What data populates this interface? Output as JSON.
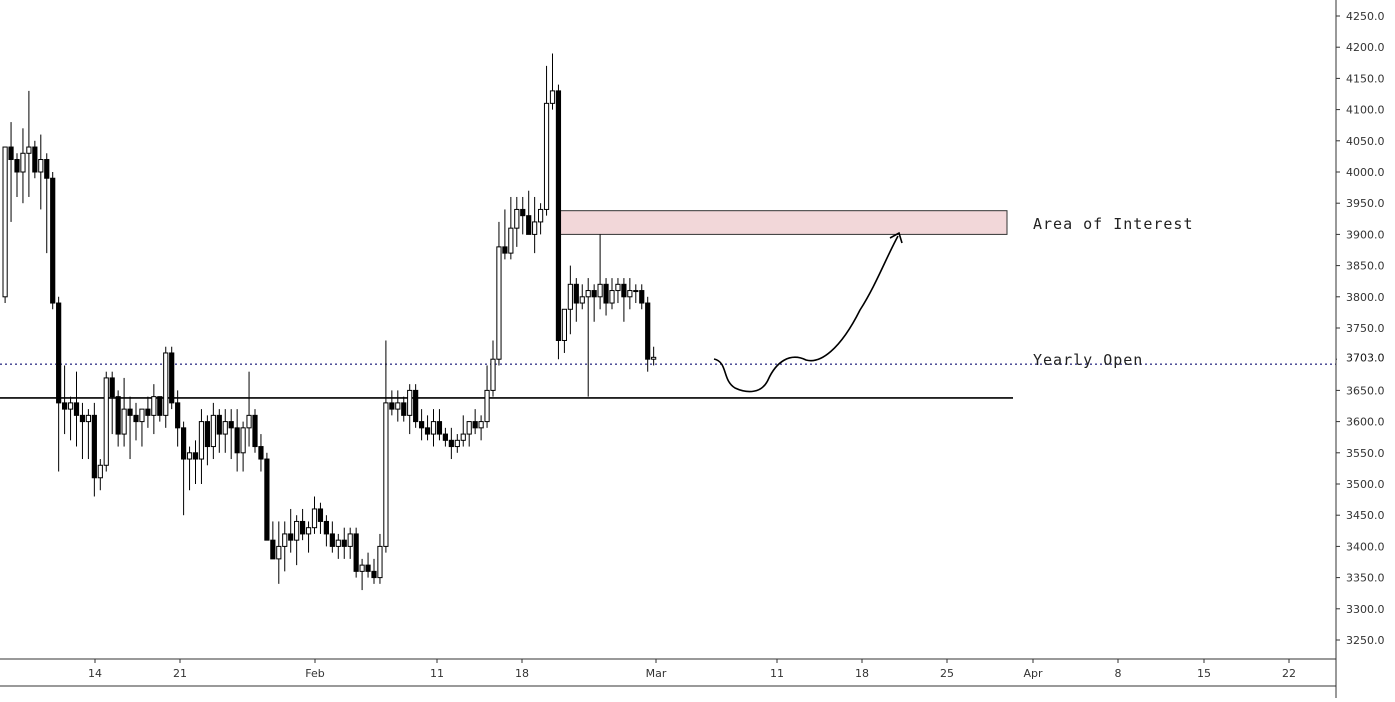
{
  "chart_data": {
    "type": "candlestick",
    "y_ticks": [
      "3250.0",
      "3300.0",
      "3350.0",
      "3400.0",
      "3450.0",
      "3500.0",
      "3550.0",
      "3600.0",
      "3650.0",
      "3700.0",
      "3750.0",
      "3800.0",
      "3850.0",
      "3900.0",
      "3950.0",
      "4000.0",
      "4050.0",
      "4100.0",
      "4150.0",
      "4200.0",
      "4250.0"
    ],
    "x_ticks": [
      "14",
      "21",
      "Feb",
      "11",
      "18",
      "Mar",
      "11",
      "18",
      "25",
      "Apr",
      "8",
      "15",
      "22"
    ],
    "price_axis_current_label": "3703.0",
    "ylim": [
      3230,
      4265
    ],
    "grid": false,
    "levels": {
      "support_line": 3638,
      "yearly_open": 3692
    },
    "area_of_interest": {
      "low": 3900,
      "high": 3938
    },
    "annotations": {
      "area_of_interest_label": "Area of Interest",
      "yearly_open_label": "Yearly Open"
    },
    "candles": [
      [
        3800,
        4040,
        3790,
        4040
      ],
      [
        4040,
        4080,
        3920,
        4020
      ],
      [
        4020,
        4030,
        3960,
        4000
      ],
      [
        4000,
        4070,
        3950,
        4030
      ],
      [
        4030,
        4130,
        3960,
        4040
      ],
      [
        4040,
        4050,
        3990,
        4000
      ],
      [
        4000,
        4060,
        3940,
        4020
      ],
      [
        4020,
        4030,
        3870,
        3990
      ],
      [
        3990,
        4000,
        3780,
        3790
      ],
      [
        3790,
        3800,
        3520,
        3630
      ],
      [
        3630,
        3690,
        3580,
        3620
      ],
      [
        3620,
        3640,
        3570,
        3630
      ],
      [
        3630,
        3680,
        3560,
        3610
      ],
      [
        3610,
        3630,
        3540,
        3600
      ],
      [
        3600,
        3620,
        3540,
        3610
      ],
      [
        3610,
        3630,
        3480,
        3510
      ],
      [
        3510,
        3540,
        3490,
        3530
      ],
      [
        3530,
        3680,
        3520,
        3670
      ],
      [
        3670,
        3680,
        3580,
        3640
      ],
      [
        3640,
        3650,
        3560,
        3580
      ],
      [
        3580,
        3670,
        3560,
        3620
      ],
      [
        3620,
        3640,
        3540,
        3610
      ],
      [
        3610,
        3630,
        3570,
        3600
      ],
      [
        3600,
        3620,
        3560,
        3620
      ],
      [
        3620,
        3640,
        3590,
        3610
      ],
      [
        3610,
        3660,
        3580,
        3640
      ],
      [
        3640,
        3640,
        3600,
        3610
      ],
      [
        3610,
        3720,
        3590,
        3710
      ],
      [
        3710,
        3720,
        3620,
        3630
      ],
      [
        3630,
        3650,
        3560,
        3590
      ],
      [
        3590,
        3600,
        3450,
        3540
      ],
      [
        3540,
        3560,
        3490,
        3550
      ],
      [
        3550,
        3570,
        3500,
        3540
      ],
      [
        3540,
        3620,
        3500,
        3600
      ],
      [
        3600,
        3610,
        3530,
        3560
      ],
      [
        3560,
        3630,
        3540,
        3610
      ],
      [
        3610,
        3620,
        3550,
        3580
      ],
      [
        3580,
        3620,
        3550,
        3600
      ],
      [
        3600,
        3620,
        3540,
        3590
      ],
      [
        3590,
        3620,
        3520,
        3550
      ],
      [
        3550,
        3600,
        3520,
        3590
      ],
      [
        3590,
        3680,
        3560,
        3610
      ],
      [
        3610,
        3620,
        3550,
        3560
      ],
      [
        3560,
        3580,
        3520,
        3540
      ],
      [
        3540,
        3550,
        3420,
        3410
      ],
      [
        3410,
        3440,
        3380,
        3380
      ],
      [
        3380,
        3440,
        3340,
        3400
      ],
      [
        3400,
        3440,
        3360,
        3420
      ],
      [
        3420,
        3460,
        3390,
        3410
      ],
      [
        3410,
        3450,
        3370,
        3440
      ],
      [
        3440,
        3460,
        3410,
        3420
      ],
      [
        3420,
        3440,
        3390,
        3430
      ],
      [
        3430,
        3480,
        3420,
        3460
      ],
      [
        3460,
        3470,
        3420,
        3440
      ],
      [
        3440,
        3450,
        3400,
        3420
      ],
      [
        3420,
        3440,
        3390,
        3400
      ],
      [
        3400,
        3420,
        3380,
        3410
      ],
      [
        3410,
        3430,
        3380,
        3400
      ],
      [
        3400,
        3430,
        3380,
        3420
      ],
      [
        3420,
        3430,
        3350,
        3360
      ],
      [
        3360,
        3380,
        3330,
        3370
      ],
      [
        3370,
        3390,
        3350,
        3360
      ],
      [
        3360,
        3380,
        3340,
        3350
      ],
      [
        3350,
        3420,
        3340,
        3400
      ],
      [
        3400,
        3730,
        3390,
        3630
      ],
      [
        3630,
        3650,
        3610,
        3620
      ],
      [
        3620,
        3650,
        3600,
        3630
      ],
      [
        3630,
        3640,
        3600,
        3610
      ],
      [
        3610,
        3660,
        3580,
        3650
      ],
      [
        3650,
        3660,
        3590,
        3600
      ],
      [
        3600,
        3620,
        3570,
        3590
      ],
      [
        3590,
        3610,
        3570,
        3580
      ],
      [
        3580,
        3620,
        3560,
        3600
      ],
      [
        3600,
        3620,
        3570,
        3580
      ],
      [
        3580,
        3590,
        3560,
        3570
      ],
      [
        3570,
        3590,
        3540,
        3560
      ],
      [
        3560,
        3580,
        3550,
        3570
      ],
      [
        3570,
        3610,
        3560,
        3580
      ],
      [
        3580,
        3600,
        3560,
        3600
      ],
      [
        3600,
        3620,
        3580,
        3590
      ],
      [
        3590,
        3610,
        3570,
        3600
      ],
      [
        3600,
        3690,
        3590,
        3650
      ],
      [
        3650,
        3730,
        3640,
        3700
      ],
      [
        3700,
        3920,
        3690,
        3880
      ],
      [
        3880,
        3940,
        3860,
        3870
      ],
      [
        3870,
        3960,
        3860,
        3910
      ],
      [
        3910,
        3960,
        3880,
        3940
      ],
      [
        3940,
        3960,
        3900,
        3930
      ],
      [
        3930,
        3970,
        3900,
        3900
      ],
      [
        3900,
        3960,
        3870,
        3920
      ],
      [
        3920,
        3950,
        3900,
        3940
      ],
      [
        3940,
        4170,
        3930,
        4110
      ],
      [
        4110,
        4190,
        4100,
        4130
      ],
      [
        4130,
        4140,
        3700,
        3730
      ],
      [
        3730,
        3780,
        3710,
        3780
      ],
      [
        3780,
        3850,
        3740,
        3820
      ],
      [
        3820,
        3830,
        3760,
        3790
      ],
      [
        3790,
        3820,
        3780,
        3800
      ],
      [
        3800,
        3830,
        3640,
        3810
      ],
      [
        3810,
        3820,
        3760,
        3800
      ],
      [
        3800,
        3900,
        3780,
        3820
      ],
      [
        3820,
        3830,
        3770,
        3790
      ],
      [
        3790,
        3830,
        3780,
        3810
      ],
      [
        3810,
        3830,
        3790,
        3820
      ],
      [
        3820,
        3830,
        3760,
        3800
      ],
      [
        3800,
        3830,
        3780,
        3810
      ],
      [
        3810,
        3820,
        3790,
        3810
      ],
      [
        3810,
        3820,
        3780,
        3790
      ],
      [
        3790,
        3800,
        3680,
        3700
      ],
      [
        3700,
        3720,
        3690,
        3703
      ]
    ]
  }
}
